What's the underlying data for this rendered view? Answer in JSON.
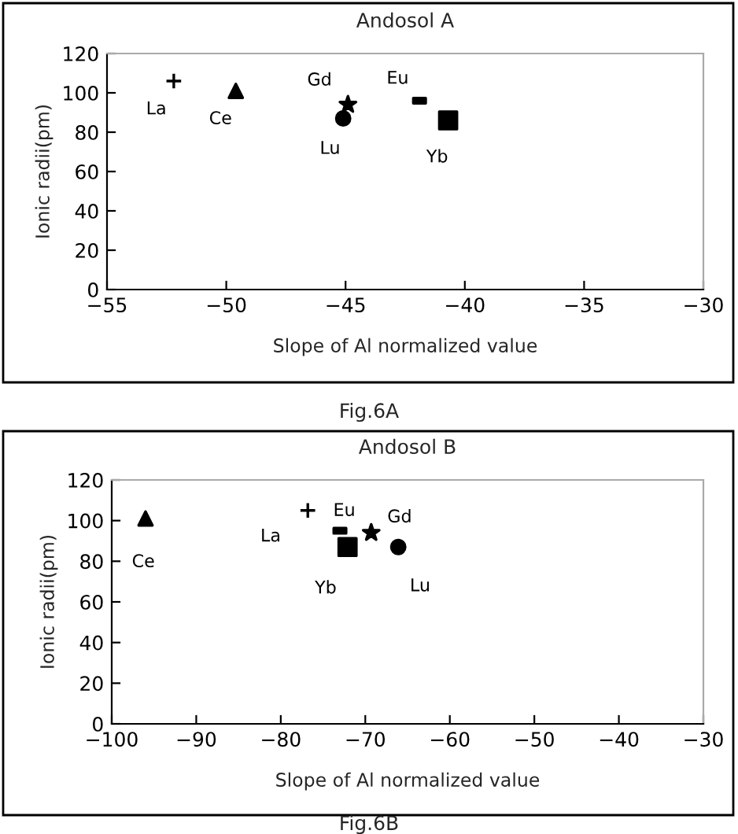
{
  "chart_data": [
    {
      "type": "scatter",
      "title": "Andosol A",
      "xlabel": "Slope of Al normalized value",
      "ylabel": "Ionic radii(pm)",
      "xlim": [
        -55,
        -30
      ],
      "xticks": [
        -55,
        -50,
        -45,
        -40,
        -35,
        -30
      ],
      "ylim": [
        0,
        120
      ],
      "yticks": [
        0,
        20,
        40,
        60,
        80,
        100,
        120
      ],
      "grid": false,
      "legend": false,
      "annotations": [
        "Fig.6A"
      ],
      "series": [
        {
          "name": "La",
          "color": "#000000",
          "marker": "cross",
          "x": [
            -52.2
          ],
          "values": [
            106
          ]
        },
        {
          "name": "Ce",
          "color": "#000000",
          "marker": "triangle",
          "x": [
            -49.6
          ],
          "values": [
            101
          ]
        },
        {
          "name": "Gd",
          "color": "#000000",
          "marker": "star",
          "x": [
            -44.9
          ],
          "values": [
            94
          ]
        },
        {
          "name": "Lu",
          "color": "#000000",
          "marker": "circle",
          "x": [
            -45.1
          ],
          "values": [
            87
          ]
        },
        {
          "name": "Eu",
          "color": "#000000",
          "marker": "square",
          "x": [
            -41.9
          ],
          "values": [
            96
          ]
        },
        {
          "name": "Yb",
          "color": "#000000",
          "marker": "square",
          "x": [
            -40.7
          ],
          "values": [
            86
          ]
        }
      ]
    },
    {
      "type": "scatter",
      "title": "Andosol B",
      "xlabel": "Slope of Al normalized value",
      "ylabel": "Ionic radii(pm)",
      "xlim": [
        -100,
        -30
      ],
      "xticks": [
        -100,
        -90,
        -80,
        -70,
        -60,
        -50,
        -40,
        -30
      ],
      "ylim": [
        0,
        120
      ],
      "yticks": [
        0,
        20,
        40,
        60,
        80,
        100,
        120
      ],
      "grid": false,
      "legend": false,
      "annotations": [
        "Fig.6B"
      ],
      "series": [
        {
          "name": "Ce",
          "color": "#000000",
          "marker": "triangle",
          "x": [
            -96.0
          ],
          "values": [
            101
          ]
        },
        {
          "name": "La",
          "color": "#000000",
          "marker": "cross",
          "x": [
            -76.8
          ],
          "values": [
            105
          ]
        },
        {
          "name": "Eu",
          "color": "#000000",
          "marker": "square",
          "x": [
            -73.0
          ],
          "values": [
            95
          ]
        },
        {
          "name": "Yb",
          "color": "#000000",
          "marker": "square",
          "x": [
            -72.1
          ],
          "values": [
            87
          ]
        },
        {
          "name": "Gd",
          "color": "#000000",
          "marker": "star",
          "x": [
            -69.3
          ],
          "values": [
            94
          ]
        },
        {
          "name": "Lu",
          "color": "#000000",
          "marker": "circle",
          "x": [
            -66.1
          ],
          "values": [
            87
          ]
        }
      ]
    }
  ]
}
